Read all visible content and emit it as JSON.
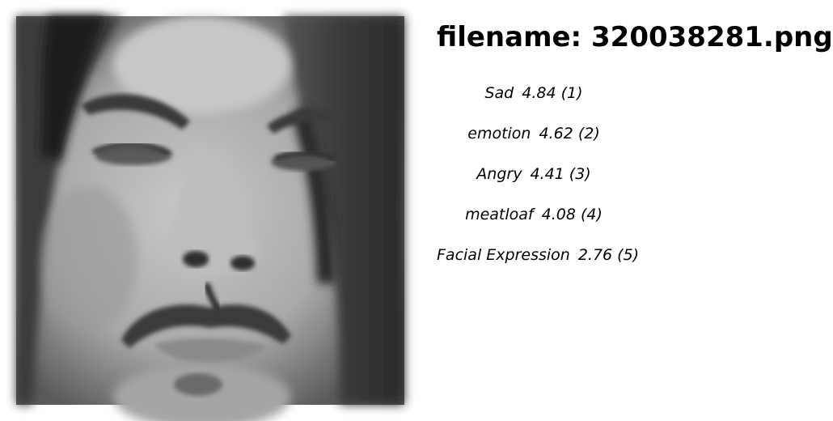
{
  "header": {
    "filename_prefix": "filename:",
    "filename": "320038281.png"
  },
  "labels": [
    {
      "name": "Sad",
      "score": "4.84",
      "rank": "(1)"
    },
    {
      "name": "emotion",
      "score": "4.62",
      "rank": "(2)"
    },
    {
      "name": "Angry",
      "score": "4.41",
      "rank": "(3)"
    },
    {
      "name": "meatloaf",
      "score": "4.08",
      "rank": "(4)"
    },
    {
      "name": "Facial Expression",
      "score": "2.76",
      "rank": "(5)"
    }
  ],
  "photo": {
    "description_icon": "face-photo",
    "palette": [
      "#2a2a2a",
      "#6e6e6e",
      "#a8a8a8",
      "#cfcfcf"
    ]
  }
}
